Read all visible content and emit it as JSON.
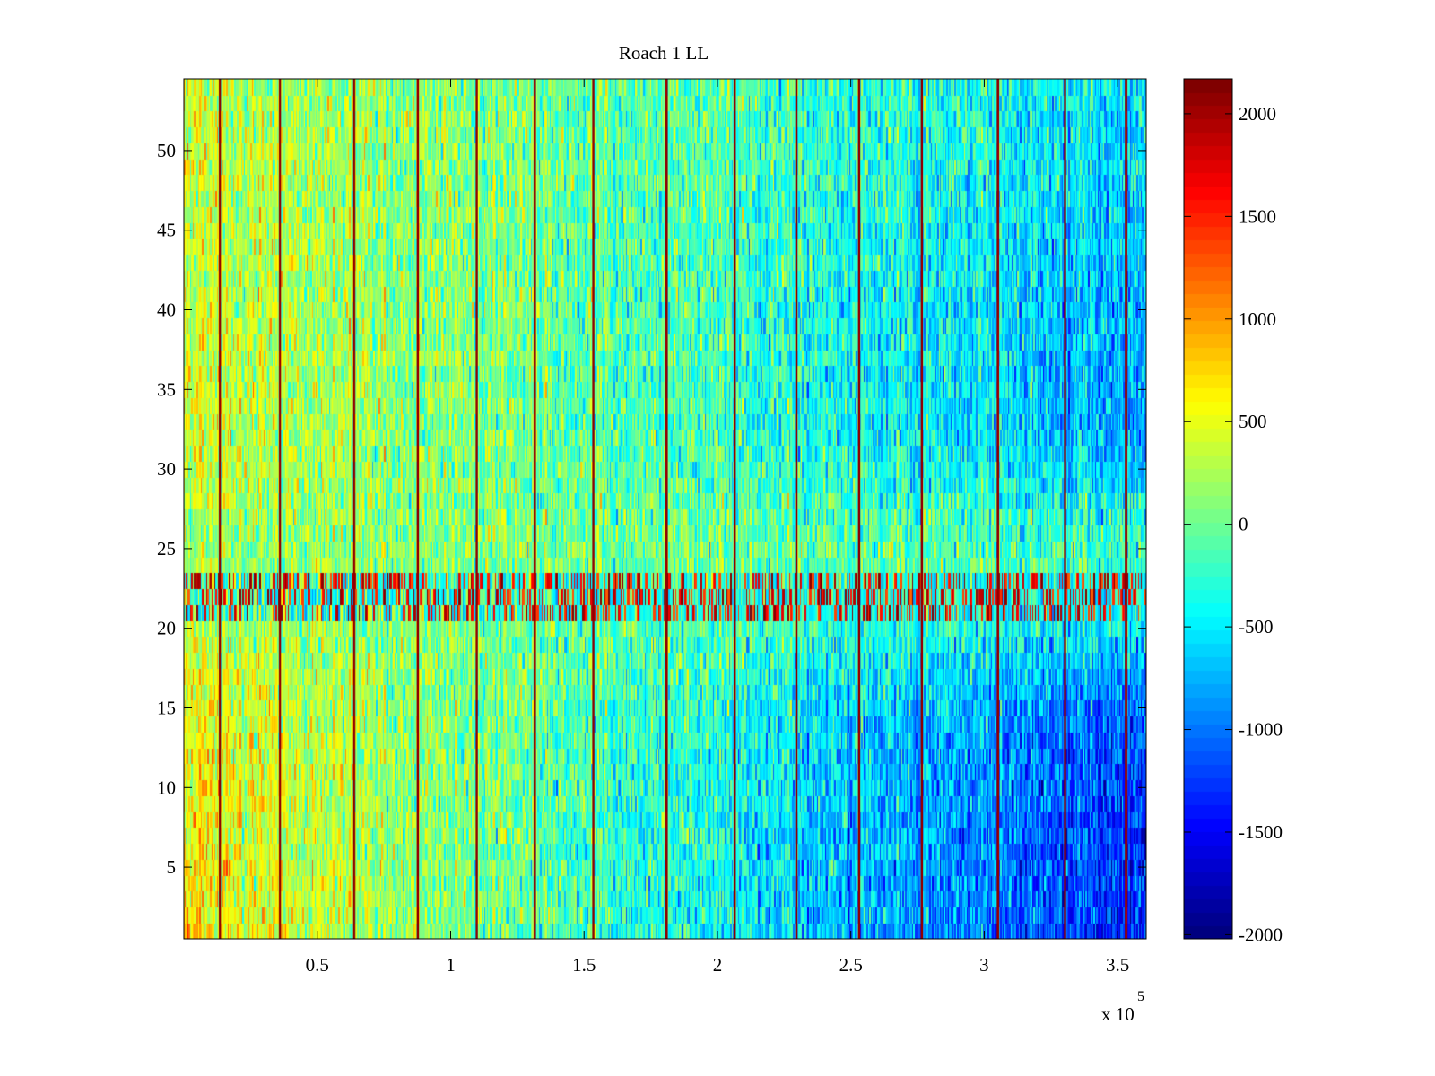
{
  "chart_data": {
    "type": "heatmap",
    "title": "Roach 1 LL",
    "xlabel": "",
    "ylabel": "",
    "x_multiplier_label": "x 10",
    "x_multiplier_exp": "5",
    "xlim": [
      0,
      360700
    ],
    "ylim": [
      0.5,
      54.5
    ],
    "rows": 54,
    "columns": 720,
    "xticks": [
      50000,
      100000,
      150000,
      200000,
      250000,
      300000,
      350000
    ],
    "xtick_labels": [
      "0.5",
      "1",
      "1.5",
      "2",
      "2.5",
      "3",
      "3.5"
    ],
    "yticks": [
      5,
      10,
      15,
      20,
      25,
      30,
      35,
      40,
      45,
      50
    ],
    "ytick_labels": [
      "5",
      "10",
      "15",
      "20",
      "25",
      "30",
      "35",
      "40",
      "45",
      "50"
    ],
    "colormap": "jet",
    "clim": [
      -2020,
      2170
    ],
    "colorbar_ticks": [
      2000,
      1500,
      1000,
      500,
      0,
      -500,
      -1000,
      -1500,
      -2000
    ],
    "colorbar_labels": [
      "2000",
      "1500",
      "1000",
      "500",
      "0",
      "-500",
      "-1000",
      "-1500",
      "-2000"
    ],
    "trend": {
      "left_bottom": 650,
      "left_top": 350,
      "right_bottom": -1350,
      "right_top": -500,
      "middle_rows_value": 100,
      "noise": 300
    },
    "high_band_rows": [
      21,
      22,
      23
    ],
    "spike_columns_x": [
      13400,
      35900,
      63800,
      87600,
      109700,
      131500,
      153400,
      180900,
      206400,
      229500,
      253000,
      276500,
      305000,
      330200,
      353000
    ],
    "spike_value": 2100
  }
}
